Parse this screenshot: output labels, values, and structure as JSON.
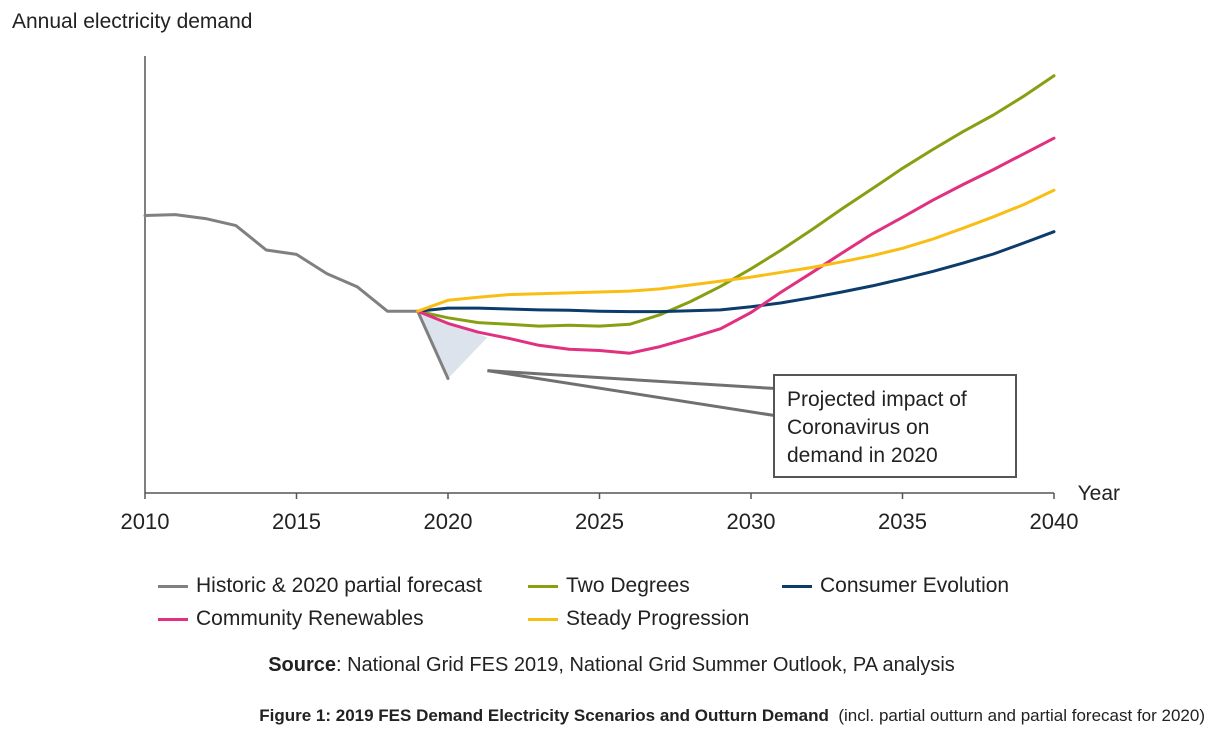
{
  "chart_data": {
    "type": "line",
    "ylabel": "Annual electricity demand",
    "xlabel": "Year",
    "xlim": [
      2010,
      2040
    ],
    "ylim": [
      0,
      100
    ],
    "x_ticks": [
      "2010",
      "2015",
      "2020",
      "2025",
      "2030",
      "2035",
      "2040"
    ],
    "y_ticks_shown": false,
    "series": [
      {
        "name": "Historic & 2020 partial forecast",
        "color": "#808080",
        "points": [
          [
            2010,
            63.5
          ],
          [
            2011,
            63.7
          ],
          [
            2012,
            62.8
          ],
          [
            2013,
            61.2
          ],
          [
            2014,
            55.6
          ],
          [
            2015,
            54.6
          ],
          [
            2016,
            50.2
          ],
          [
            2017,
            47.2
          ],
          [
            2018,
            41.6
          ],
          [
            2019,
            41.6
          ],
          [
            2020,
            26.2
          ]
        ]
      },
      {
        "name": "Two Degrees",
        "color": "#86A012",
        "points": [
          [
            2019,
            41.6
          ],
          [
            2020,
            40.1
          ],
          [
            2021,
            39.0
          ],
          [
            2022,
            38.6
          ],
          [
            2023,
            38.2
          ],
          [
            2024,
            38.4
          ],
          [
            2025,
            38.2
          ],
          [
            2026,
            38.6
          ],
          [
            2027,
            40.8
          ],
          [
            2028,
            43.8
          ],
          [
            2029,
            47.3
          ],
          [
            2030,
            51.3
          ],
          [
            2031,
            55.6
          ],
          [
            2032,
            60.2
          ],
          [
            2033,
            65.0
          ],
          [
            2034,
            69.6
          ],
          [
            2035,
            74.3
          ],
          [
            2036,
            78.6
          ],
          [
            2037,
            82.7
          ],
          [
            2038,
            86.5
          ],
          [
            2039,
            90.8
          ],
          [
            2040,
            95.5
          ]
        ]
      },
      {
        "name": "Consumer Evolution",
        "color": "#0B3C6B",
        "points": [
          [
            2019,
            41.6
          ],
          [
            2020,
            42.3
          ],
          [
            2021,
            42.3
          ],
          [
            2022,
            42.1
          ],
          [
            2023,
            41.9
          ],
          [
            2024,
            41.8
          ],
          [
            2025,
            41.6
          ],
          [
            2026,
            41.5
          ],
          [
            2027,
            41.5
          ],
          [
            2028,
            41.7
          ],
          [
            2029,
            41.9
          ],
          [
            2030,
            42.6
          ],
          [
            2031,
            43.5
          ],
          [
            2032,
            44.7
          ],
          [
            2033,
            46.0
          ],
          [
            2034,
            47.4
          ],
          [
            2035,
            49.0
          ],
          [
            2036,
            50.7
          ],
          [
            2037,
            52.6
          ],
          [
            2038,
            54.7
          ],
          [
            2039,
            57.2
          ],
          [
            2040,
            59.8
          ]
        ]
      },
      {
        "name": "Community Renewables",
        "color": "#E0307F",
        "points": [
          [
            2019,
            41.6
          ],
          [
            2020,
            38.8
          ],
          [
            2021,
            36.8
          ],
          [
            2022,
            35.4
          ],
          [
            2023,
            33.8
          ],
          [
            2024,
            32.9
          ],
          [
            2025,
            32.6
          ],
          [
            2026,
            32.0
          ],
          [
            2027,
            33.5
          ],
          [
            2028,
            35.5
          ],
          [
            2029,
            37.6
          ],
          [
            2030,
            41.3
          ],
          [
            2031,
            46.0
          ],
          [
            2032,
            50.4
          ],
          [
            2033,
            54.9
          ],
          [
            2034,
            59.3
          ],
          [
            2035,
            63.1
          ],
          [
            2036,
            67.0
          ],
          [
            2037,
            70.6
          ],
          [
            2038,
            74.0
          ],
          [
            2039,
            77.6
          ],
          [
            2040,
            81.2
          ]
        ]
      },
      {
        "name": "Steady Progression",
        "color": "#F9BE14",
        "points": [
          [
            2019,
            41.6
          ],
          [
            2020,
            44.1
          ],
          [
            2021,
            44.8
          ],
          [
            2022,
            45.4
          ],
          [
            2023,
            45.6
          ],
          [
            2024,
            45.8
          ],
          [
            2025,
            46.0
          ],
          [
            2026,
            46.2
          ],
          [
            2027,
            46.7
          ],
          [
            2028,
            47.6
          ],
          [
            2029,
            48.5
          ],
          [
            2030,
            49.4
          ],
          [
            2031,
            50.5
          ],
          [
            2032,
            51.6
          ],
          [
            2033,
            52.9
          ],
          [
            2034,
            54.3
          ],
          [
            2035,
            56.0
          ],
          [
            2036,
            58.1
          ],
          [
            2037,
            60.6
          ],
          [
            2038,
            63.2
          ],
          [
            2039,
            66.0
          ],
          [
            2040,
            69.3
          ]
        ]
      }
    ],
    "shaded_region": {
      "color": "#DDE3EC",
      "points": [
        [
          2019,
          41.6
        ],
        [
          2020,
          26.2
        ],
        [
          2021.3,
          35.6
        ]
      ]
    },
    "annotation": {
      "text_lines": [
        "Projected impact of",
        "Coronavirus on",
        "demand in 2020"
      ],
      "pointer_from": [
        2021.3,
        28.0
      ],
      "pointer_to": [
        [
          2030.8,
          23.9
        ],
        [
          2030.8,
          17.7
        ]
      ],
      "line_color": "#707070"
    },
    "legend": {
      "placement": "bottom",
      "entries": [
        "Historic & 2020 partial forecast",
        "Two Degrees",
        "Consumer Evolution",
        "Community Renewables",
        "Steady Progression"
      ]
    },
    "grid": false
  },
  "source": {
    "label": "Source",
    "text": ": National Grid FES 2019, National Grid Summer Outlook, PA analysis"
  },
  "caption": {
    "bold": "Figure 1: 2019 FES Demand Electricity Scenarios and Outturn Demand",
    "normal": "  (incl. partial outturn and partial forecast for 2020)"
  }
}
